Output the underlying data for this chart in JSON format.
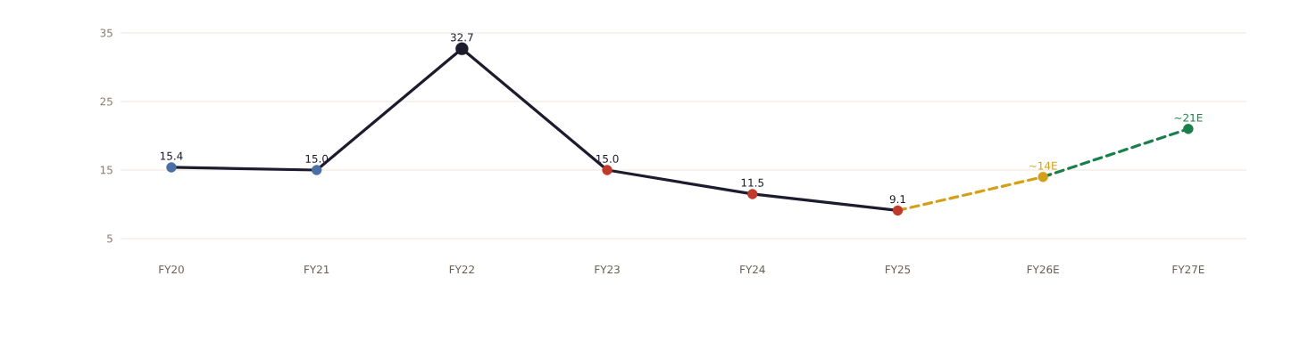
{
  "chart_data": {
    "type": "line",
    "categories": [
      "FY20",
      "FY21",
      "FY22",
      "FY23",
      "FY24",
      "FY25",
      "FY26E",
      "FY27E"
    ],
    "series": [
      {
        "color": "#1c1c2e",
        "line_style": "solid",
        "values": [
          15.4,
          15.0,
          32.7,
          15.0,
          11.5,
          9.1,
          null,
          null
        ],
        "colors": [
          "#4a6fa5",
          "#4a6fa5",
          "#1c1c2e",
          "#c0392b",
          "#c0392b",
          "#c0392b",
          null,
          null
        ],
        "value_labels": [
          "15.4",
          "15.0",
          "32.7",
          "15.0",
          "11.5",
          "9.1",
          null,
          null
        ]
      },
      {
        "color": "#d4a017",
        "line_style": "dashed",
        "values": [
          null,
          null,
          null,
          null,
          null,
          9.1,
          14,
          null
        ],
        "colors": [
          null,
          null,
          null,
          null,
          null,
          null,
          "#d4a017",
          null
        ],
        "value_labels": [
          null,
          null,
          null,
          null,
          null,
          null,
          "~14E",
          null
        ]
      },
      {
        "color": "#1a7f4b",
        "line_style": "dashed",
        "values": [
          null,
          null,
          null,
          null,
          null,
          null,
          14,
          21
        ],
        "colors": [
          null,
          null,
          null,
          null,
          null,
          null,
          null,
          "#1a7f4b"
        ],
        "value_labels": [
          null,
          null,
          null,
          null,
          null,
          null,
          null,
          "~21E"
        ]
      }
    ],
    "ylim": [
      5,
      35
    ],
    "yticks": [
      5,
      15,
      25,
      35
    ],
    "grid": "y",
    "marker": "circle"
  }
}
